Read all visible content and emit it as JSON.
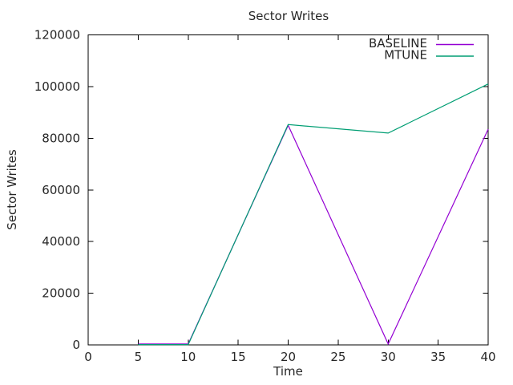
{
  "chart_data": {
    "type": "line",
    "title": "Sector Writes",
    "xlabel": "Time",
    "ylabel": "Sector Writes",
    "xlim": [
      0,
      40
    ],
    "ylim": [
      0,
      120000
    ],
    "x_ticks": [
      0,
      5,
      10,
      15,
      20,
      25,
      30,
      35,
      40
    ],
    "y_ticks": [
      0,
      20000,
      40000,
      60000,
      80000,
      100000,
      120000
    ],
    "grid": false,
    "legend_position": "top-right-inside",
    "background": "#ffffff",
    "border_color": "#000000",
    "text_color": "#262626",
    "series": [
      {
        "name": "BASELINE",
        "color": "#9400d3",
        "x": [
          5,
          10,
          20,
          30,
          40
        ],
        "y": [
          0,
          0,
          85000,
          0,
          83500
        ]
      },
      {
        "name": "MTUNE",
        "color": "#009e73",
        "x": [
          5,
          10,
          20,
          30,
          40
        ],
        "y": [
          0,
          0,
          85300,
          82000,
          101000
        ]
      }
    ]
  }
}
